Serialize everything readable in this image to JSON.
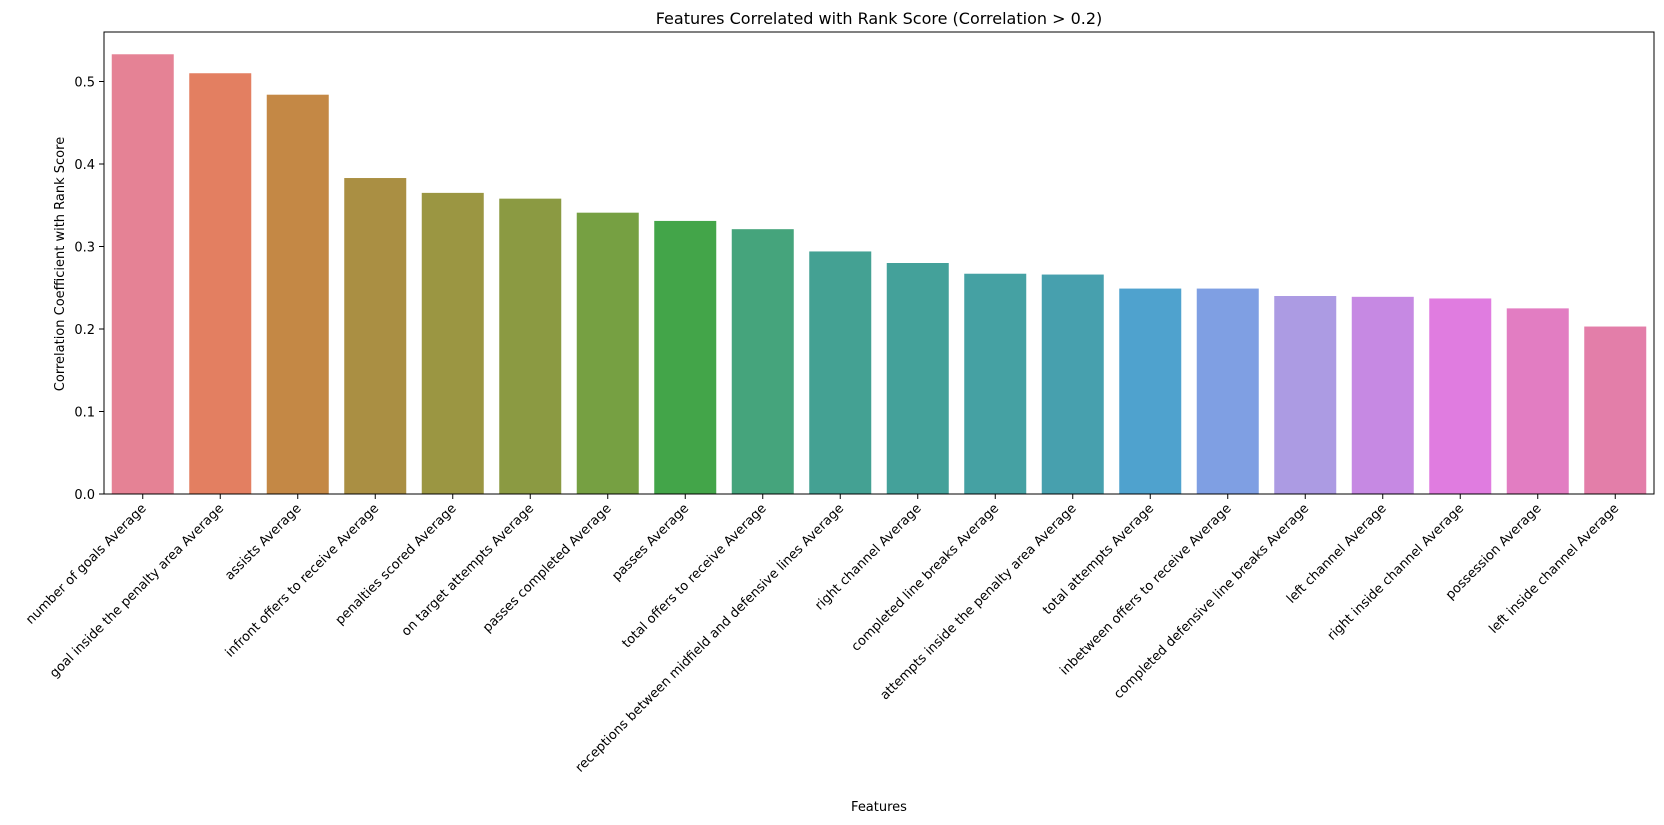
{
  "chart_data": {
    "type": "bar",
    "title": "Features Correlated with Rank Score (Correlation > 0.2)",
    "xlabel": "Features",
    "ylabel": "Correlation Coefficient with Rank Score",
    "ylim": [
      0,
      0.56
    ],
    "yticks": [
      "0.0",
      "0.1",
      "0.2",
      "0.3",
      "0.4",
      "0.5"
    ],
    "ytick_values": [
      0.0,
      0.1,
      0.2,
      0.3,
      0.4,
      0.5
    ],
    "grid": false,
    "legend": "none",
    "categories": [
      "number of goals Average",
      "goal inside the penalty area Average",
      "assists Average",
      "infront offers to receive Average",
      "penalties scored Average",
      "on target attempts Average",
      "passes completed Average",
      "passes Average",
      "total offers to receive Average",
      "receptions between midfield and defensive lines Average",
      "right channel Average",
      "completed line breaks Average",
      "attempts inside the penalty area Average",
      "total attempts Average",
      "inbetween offers to receive Average",
      "completed defensive line breaks Average",
      "left channel Average",
      "right inside channel Average",
      "possession Average",
      "left inside channel Average"
    ],
    "values": [
      0.533,
      0.51,
      0.484,
      0.383,
      0.365,
      0.358,
      0.341,
      0.331,
      0.321,
      0.294,
      0.28,
      0.267,
      0.266,
      0.249,
      0.249,
      0.24,
      0.239,
      0.237,
      0.225,
      0.203
    ],
    "colors": [
      "#e58295",
      "#e37f61",
      "#c48845",
      "#aa8f43",
      "#9b9642",
      "#8b9a42",
      "#76a042",
      "#43a549",
      "#45a47c",
      "#44a193",
      "#44a19a",
      "#45a1a3",
      "#47a0ae",
      "#4fa2ce",
      "#7f9fe3",
      "#ac9be3",
      "#c689e3",
      "#e07ce0",
      "#e27dc2",
      "#e37ea9"
    ]
  }
}
